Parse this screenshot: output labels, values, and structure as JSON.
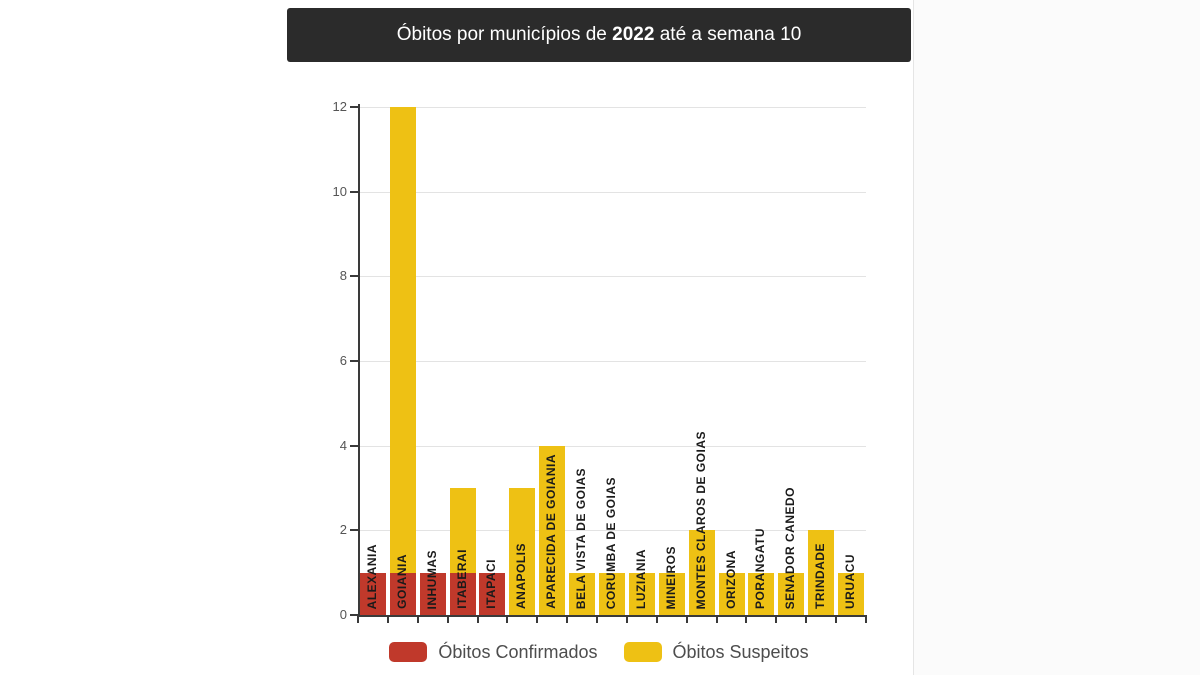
{
  "header": {
    "title_prefix": "Óbitos por municípios de ",
    "title_year": "2022",
    "title_suffix": " até a semana 10",
    "bg_color": "#2b2b2b",
    "text_color": "#ffffff"
  },
  "legend": {
    "items": [
      {
        "label": "Óbitos Confirmados",
        "color": "#c0392b"
      },
      {
        "label": "Óbitos Suspeitos",
        "color": "#eec114"
      }
    ]
  },
  "colors": {
    "confirmados": "#c0392b",
    "suspeitos": "#eec114",
    "gridline": "#e3e3e3",
    "axis": "#3a3a3a",
    "ytick_label": "#555555",
    "category_label": "#1a1a1a",
    "legend_text": "#4d4d4d"
  },
  "chart_data": {
    "type": "bar",
    "title": "Óbitos por municípios de 2022 até a semana 10",
    "categories": [
      "ALEXANIA",
      "GOIANIA",
      "INHUMAS",
      "ITABERAI",
      "ITAPACI",
      "ANAPOLIS",
      "APARECIDA DE GOIANIA",
      "BELA VISTA DE GOIAS",
      "CORUMBA DE GOIAS",
      "LUZIANIA",
      "MINEIROS",
      "MONTES CLAROS DE GOIAS",
      "ORIZONA",
      "PORANGATU",
      "SENADOR CANEDO",
      "TRINDADE",
      "URUACU"
    ],
    "series": [
      {
        "name": "Óbitos Suspeitos",
        "color": "#eec114",
        "values": [
          0,
          12,
          0,
          3,
          0,
          3,
          4,
          1,
          1,
          1,
          1,
          2,
          1,
          1,
          1,
          2,
          1
        ]
      },
      {
        "name": "Óbitos Confirmados",
        "color": "#c0392b",
        "values": [
          1,
          1,
          1,
          1,
          1,
          0,
          0,
          0,
          0,
          0,
          0,
          0,
          0,
          0,
          0,
          0,
          0
        ]
      }
    ],
    "xlabel": "",
    "ylabel": "",
    "ylim": [
      0,
      12
    ],
    "yticks": [
      0,
      2,
      4,
      6,
      8,
      10,
      12
    ],
    "grid": true,
    "legend_position": "bottom",
    "bar_layout": "overlapped"
  }
}
